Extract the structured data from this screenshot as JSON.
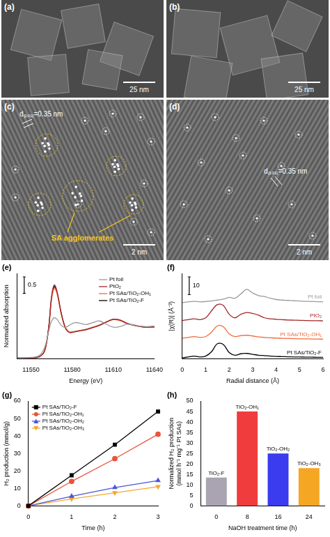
{
  "images": [
    {
      "panel": "(a)",
      "scale_bar": "25 nm"
    },
    {
      "panel": "(b)",
      "scale_bar": "25 nm"
    },
    {
      "panel": "(c)",
      "scale_bar": "2 nm",
      "spacing_label": "d₍₁₀₁₎=0.35 nm",
      "annotation": "SA agglomerates"
    },
    {
      "panel": "(d)",
      "scale_bar": "2 nm",
      "spacing_label": "d₍₁₀₁₎=0.35 nm"
    }
  ],
  "chart_data": [
    {
      "panel": "(e)",
      "type": "line",
      "x_label": "Energy (eV)",
      "y_label": "Normalized absorption",
      "x": [
        11540,
        11550,
        11556,
        11560,
        11563,
        11565,
        11567,
        11569,
        11572,
        11575,
        11578,
        11582,
        11586,
        11590,
        11595,
        11600,
        11605,
        11610,
        11615,
        11620,
        11625,
        11630,
        11635,
        11640
      ],
      "xlim": [
        11540,
        11640
      ],
      "xticks": [
        11550,
        11580,
        11610,
        11640
      ],
      "ylim": [
        0,
        2.6
      ],
      "tick_labels": "x",
      "grid": false,
      "legend": "top-right",
      "scale_bar": 0.5,
      "series": [
        {
          "name": "Pt foil",
          "color": "#9a9a9a",
          "values": [
            0.02,
            0.04,
            0.1,
            0.35,
            0.85,
            1.15,
            1.25,
            1.2,
            1.02,
            0.95,
            1.02,
            1.1,
            1.08,
            1.04,
            1.1,
            1.15,
            1.05,
            0.96,
            0.98,
            1.05,
            1.03,
            0.99,
            0.98,
            1.0
          ]
        },
        {
          "name": "PtO₂",
          "color": "#a3262a",
          "values": [
            0.02,
            0.03,
            0.06,
            0.25,
            1.0,
            1.9,
            2.25,
            2.05,
            1.4,
            0.95,
            0.8,
            0.82,
            0.85,
            0.88,
            0.95,
            1.02,
            1.12,
            1.2,
            1.18,
            1.08,
            1.02,
            0.98,
            0.96,
            0.97
          ]
        },
        {
          "name": "Pt SAs/TiO₂-OH₁",
          "color": "#ee6a3c",
          "values": [
            0.02,
            0.03,
            0.06,
            0.24,
            0.95,
            1.8,
            2.15,
            1.98,
            1.38,
            0.95,
            0.82,
            0.83,
            0.86,
            0.9,
            0.96,
            1.03,
            1.12,
            1.19,
            1.16,
            1.07,
            1.02,
            0.98,
            0.97,
            0.97
          ]
        },
        {
          "name": "Pt SAs/TiO₂-F",
          "color": "#000000",
          "values": [
            0.02,
            0.03,
            0.06,
            0.25,
            0.98,
            1.85,
            2.2,
            2.02,
            1.4,
            0.96,
            0.81,
            0.83,
            0.86,
            0.89,
            0.95,
            1.02,
            1.12,
            1.2,
            1.17,
            1.08,
            1.02,
            0.98,
            0.96,
            0.97
          ]
        }
      ]
    },
    {
      "panel": "(f)",
      "type": "line",
      "x_label": "Radial distance (Å)",
      "y_label": "|χ(R)| (Å⁻³)",
      "x": [
        0,
        0.25,
        0.5,
        0.75,
        1,
        1.25,
        1.5,
        1.75,
        2,
        2.25,
        2.5,
        2.75,
        3,
        3.25,
        3.5,
        3.75,
        4,
        4.25,
        4.5,
        4.75,
        5,
        5.25,
        5.5,
        5.75,
        6
      ],
      "xlim": [
        0,
        6
      ],
      "xticks": [
        0,
        1,
        2,
        3,
        4,
        5,
        6
      ],
      "ylim": [
        0,
        48
      ],
      "tick_labels": "x",
      "grid": false,
      "legend": "inline",
      "scale_bar": 10,
      "series": [
        {
          "name": "Pt foil",
          "color": "#9a9a9a",
          "values": [
            31.5,
            32,
            32.3,
            32,
            32.2,
            32.5,
            33,
            33.5,
            34.5,
            34,
            36.5,
            39,
            37,
            35.5,
            35,
            34,
            33.3,
            33,
            32.8,
            32.6,
            32.5,
            32.3,
            32.2,
            32.1,
            32
          ]
        },
        {
          "name": "PtO₂",
          "color": "#a3262a",
          "values": [
            21.5,
            22,
            22.5,
            22,
            23,
            27,
            30.5,
            30,
            25,
            23,
            25,
            26,
            25.5,
            24.5,
            23,
            22.5,
            22.2,
            22,
            21.8,
            21.7,
            21.6,
            21.5,
            21.4,
            21.4,
            21.3
          ]
        },
        {
          "name": "Pt SAs/TiO₂-OH₁",
          "color": "#ee6a3c",
          "values": [
            11.5,
            12,
            12.5,
            12,
            12.5,
            15,
            18.5,
            18,
            14,
            12.5,
            13,
            13.2,
            12.8,
            12.3,
            12,
            11.8,
            11.6,
            11.5,
            11.4,
            11.3,
            11.2,
            11.2,
            11.1,
            11.1,
            11
          ]
        },
        {
          "name": "Pt SAs/TiO₂-F",
          "color": "#000000",
          "values": [
            0.5,
            1,
            1.5,
            1,
            1.5,
            4,
            8.5,
            8,
            3.5,
            2,
            2.8,
            3,
            2.5,
            2,
            1.8,
            1.5,
            1.3,
            1.2,
            1.1,
            1,
            1,
            0.9,
            0.9,
            0.8,
            0.8
          ]
        }
      ]
    },
    {
      "panel": "(g)",
      "type": "line",
      "x_label": "Time (h)",
      "y_label": "H₂ production (mmol/g)",
      "x": [
        0,
        1,
        2,
        3
      ],
      "xlim": [
        0,
        3
      ],
      "xticks": [
        0,
        1,
        2,
        3
      ],
      "ylim": [
        0,
        60
      ],
      "yticks": [
        0,
        10,
        20,
        30,
        40,
        50,
        60
      ],
      "grid": false,
      "legend": "top-left",
      "series": [
        {
          "name": "Pt SAs/TiO₂-F",
          "color": "#000000",
          "marker": "square",
          "values": [
            0,
            17.5,
            35,
            54
          ]
        },
        {
          "name": "Pt SAs/TiO₂-OH₁",
          "color": "#e8553a",
          "marker": "circle",
          "values": [
            0,
            14,
            27,
            41
          ]
        },
        {
          "name": "Pt SAs/TiO₂-OH₂",
          "color": "#4a55d8",
          "marker": "triangle",
          "values": [
            0,
            5.5,
            10.5,
            14.5
          ]
        },
        {
          "name": "Pt SAs/TiO₂-OH₃",
          "color": "#f4a830",
          "marker": "triangle-down",
          "values": [
            0,
            4,
            7.5,
            11
          ]
        }
      ]
    },
    {
      "panel": "(h)",
      "type": "bar",
      "x_label": "NaOH treatment time (h)",
      "y_label": "Normalized H₂ production (mmol h⁻¹ mg⁻¹ Pt SAs)",
      "categories": [
        "0",
        "8",
        "16",
        "24"
      ],
      "values": [
        13.5,
        45,
        25,
        18
      ],
      "colors": [
        "#aaa3b2",
        "#f03c3c",
        "#3b3bf0",
        "#f5a623"
      ],
      "bar_labels": [
        "TiO₂-F",
        "TiO₂-OH₁",
        "TiO₂-OH₂",
        "TiO₂-OH₃"
      ],
      "ylim": [
        0,
        50
      ],
      "yticks": [
        0,
        5,
        10,
        15,
        20,
        25,
        30,
        35,
        40,
        45,
        50
      ],
      "grid": false
    }
  ]
}
